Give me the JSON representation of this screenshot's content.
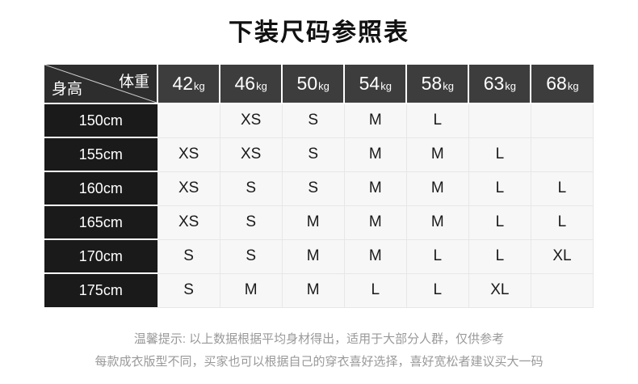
{
  "title": "下装尺码参照表",
  "chart_data": {
    "type": "table",
    "title": "下装尺码参照表",
    "corner": {
      "top_right_label": "体重",
      "bottom_left_label": "身高"
    },
    "weight_unit": "kg",
    "weights": [
      "42",
      "46",
      "50",
      "54",
      "58",
      "63",
      "68"
    ],
    "rows": [
      {
        "height": "150cm",
        "sizes": [
          "",
          "XS",
          "S",
          "M",
          "L",
          "",
          ""
        ]
      },
      {
        "height": "155cm",
        "sizes": [
          "XS",
          "XS",
          "S",
          "M",
          "M",
          "L",
          ""
        ]
      },
      {
        "height": "160cm",
        "sizes": [
          "XS",
          "S",
          "S",
          "M",
          "M",
          "L",
          "L"
        ]
      },
      {
        "height": "165cm",
        "sizes": [
          "XS",
          "S",
          "M",
          "M",
          "M",
          "L",
          "L"
        ]
      },
      {
        "height": "170cm",
        "sizes": [
          "S",
          "S",
          "M",
          "M",
          "L",
          "L",
          "XL"
        ]
      },
      {
        "height": "175cm",
        "sizes": [
          "S",
          "M",
          "M",
          "L",
          "L",
          "XL",
          ""
        ]
      }
    ]
  },
  "footer": {
    "line1": "温馨提示: 以上数据根据平均身材得出，适用于大部分人群，仅供参考",
    "line2": "每款成衣版型不同，买家也可以根据自己的穿衣喜好选择，喜好宽松者建议买大一码"
  },
  "colors": {
    "header_cell_bg": "#3d3d3d",
    "corner_cell_bg": "#2d2d2d",
    "height_cell_bg": "#1a1a1a",
    "data_cell_bg": "#f7f7f7",
    "grid_line": "#e7e7e7",
    "header_text": "#ffffff",
    "data_text": "#1a1a1a",
    "footer_text": "#999999",
    "title_text": "#111111"
  }
}
